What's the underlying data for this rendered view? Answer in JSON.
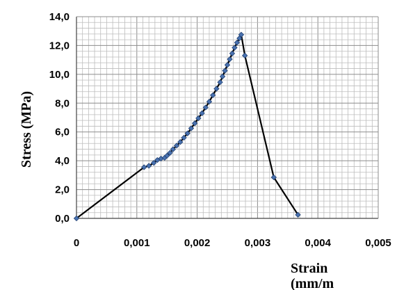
{
  "chart_data": {
    "type": "scatter",
    "title": "",
    "xlabel": [
      "Strain",
      "(mm/m"
    ],
    "ylabel": "Stress (MPa)",
    "xlim": [
      0,
      0.005
    ],
    "ylim": [
      0,
      14
    ],
    "x_ticks": [
      "0",
      "0,001",
      "0,002",
      "0,003",
      "0,004",
      "0,005"
    ],
    "y_ticks": [
      "0,0",
      "2,0",
      "4,0",
      "6,0",
      "8,0",
      "10,0",
      "12,0",
      "14,0"
    ],
    "grid": true,
    "legend": "none",
    "line_color": "#000000",
    "marker_color": "#4a72b0",
    "series": [
      {
        "x": [
          0,
          0.00112,
          0.0012,
          0.00128,
          0.00134,
          0.0014,
          0.00146,
          0.0015,
          0.00155,
          0.0016,
          0.00166,
          0.00172,
          0.00178,
          0.00184,
          0.0019,
          0.00196,
          0.00202,
          0.00208,
          0.00214,
          0.0022,
          0.00226,
          0.00232,
          0.00238,
          0.00242,
          0.00246,
          0.0025,
          0.00254,
          0.00258,
          0.00262,
          0.00266,
          0.0027,
          0.00273,
          0.00279,
          0.00327,
          0.00367
        ],
        "y": [
          0,
          3.55,
          3.65,
          3.85,
          4.05,
          4.15,
          4.2,
          4.35,
          4.55,
          4.8,
          5.05,
          5.3,
          5.6,
          5.9,
          6.25,
          6.6,
          6.95,
          7.3,
          7.7,
          8.1,
          8.55,
          9.0,
          9.45,
          9.85,
          10.25,
          10.65,
          11.05,
          11.45,
          11.85,
          12.2,
          12.5,
          12.75,
          11.3,
          2.85,
          0.25
        ]
      }
    ]
  }
}
